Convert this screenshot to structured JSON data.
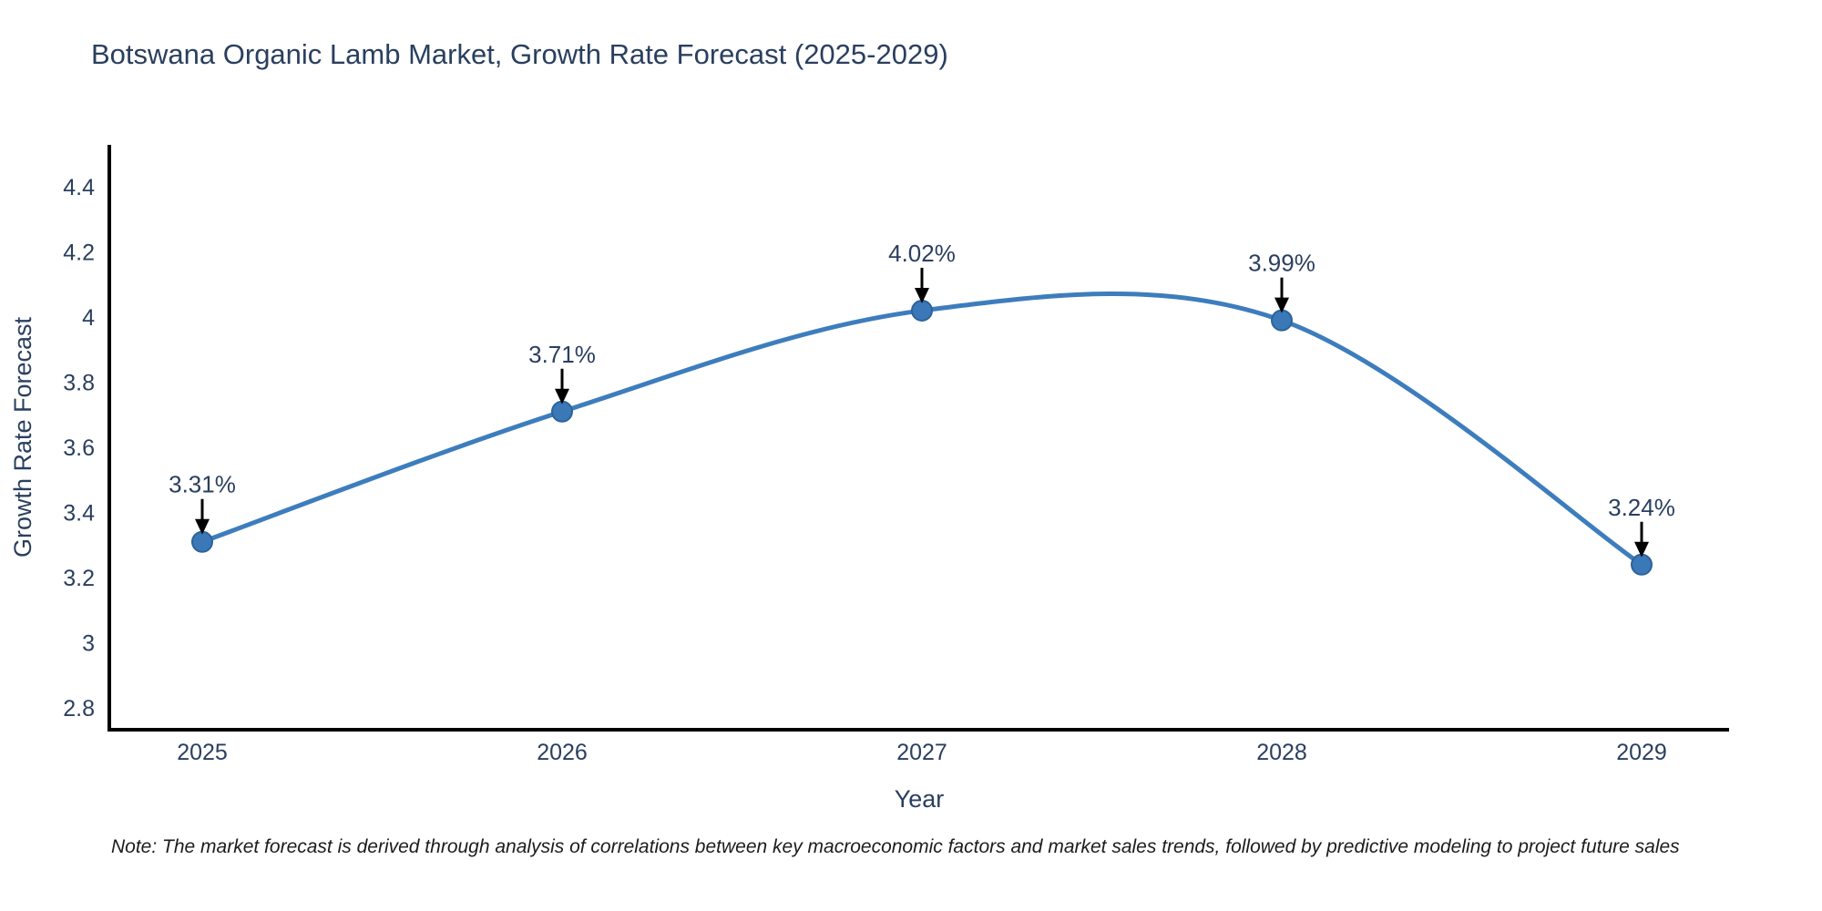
{
  "title": "Botswana Organic Lamb Market, Growth Rate Forecast (2025-2029)",
  "note": "Note: The market forecast is derived through analysis of correlations between key macroeconomic factors and market sales trends, followed by predictive modeling to project future sales",
  "chart_data": {
    "type": "line",
    "title": "Botswana Organic Lamb Market, Growth Rate Forecast (2025-2029)",
    "xlabel": "Year",
    "ylabel": "Growth Rate Forecast",
    "x": [
      2025,
      2026,
      2027,
      2028,
      2029
    ],
    "series": [
      {
        "name": "Growth Rate Forecast",
        "values": [
          3.31,
          3.71,
          4.02,
          3.99,
          3.24
        ]
      }
    ],
    "point_labels": [
      "3.31%",
      "3.71%",
      "4.02%",
      "3.99%",
      "3.24%"
    ],
    "line_shape": "spline",
    "grid": false,
    "legend": "none",
    "ylim": [
      2.733,
      4.529
    ],
    "yticks": [
      {
        "value": 2.8,
        "label": "2.8"
      },
      {
        "value": 3.0,
        "label": "3"
      },
      {
        "value": 3.2,
        "label": "3.2"
      },
      {
        "value": 3.4,
        "label": "3.4"
      },
      {
        "value": 3.6,
        "label": "3.6"
      },
      {
        "value": 3.8,
        "label": "3.8"
      },
      {
        "value": 4.0,
        "label": "4"
      },
      {
        "value": 4.2,
        "label": "4.2"
      },
      {
        "value": 4.4,
        "label": "4.4"
      }
    ],
    "xticks": [
      {
        "value": 2025,
        "label": "2025"
      },
      {
        "value": 2026,
        "label": "2026"
      },
      {
        "value": 2027,
        "label": "2027"
      },
      {
        "value": 2028,
        "label": "2028"
      },
      {
        "value": 2029,
        "label": "2029"
      }
    ],
    "colors": {
      "line": "#3d7dbd",
      "marker_fill": "#3a78b8",
      "marker_edge": "#2e6399",
      "text": "#2a3f5f",
      "axis": "#000000",
      "annotation_arrow": "#000000",
      "background": "#ffffff"
    }
  }
}
